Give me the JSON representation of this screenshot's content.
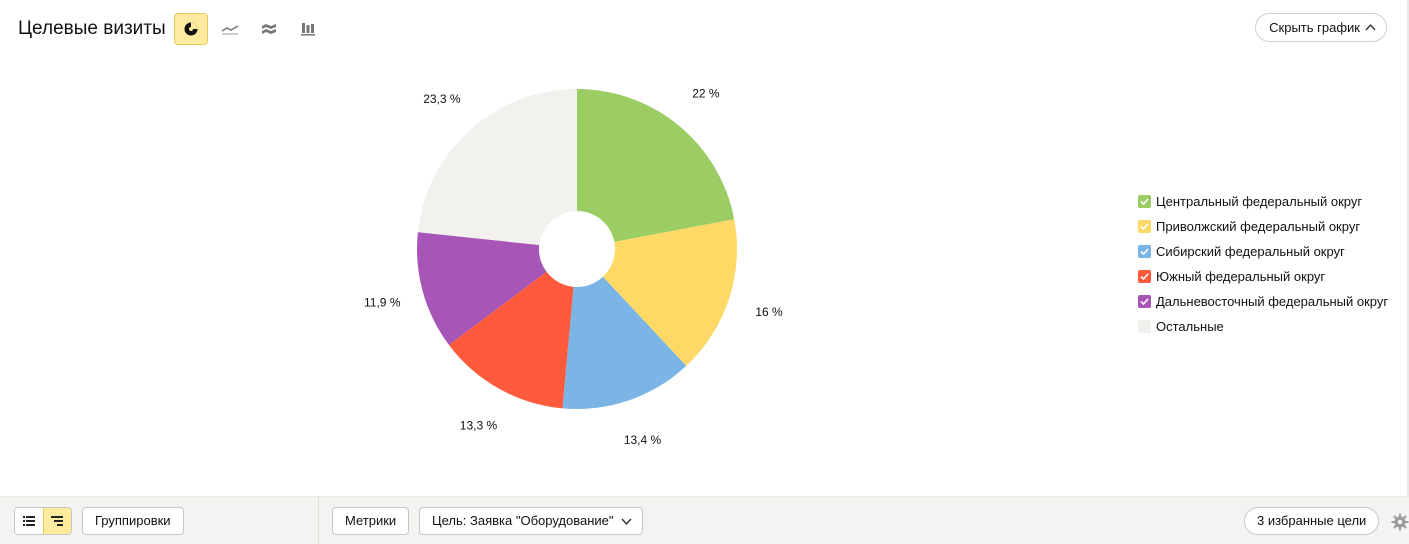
{
  "header": {
    "title": "Целевые визиты",
    "hide_chart_label": "Скрыть график"
  },
  "chart_types": [
    "pie",
    "line",
    "area",
    "bar"
  ],
  "chart_types_active": "pie",
  "chart_data": {
    "type": "pie",
    "title": "",
    "slices": [
      {
        "label": "Центральный федеральный округ",
        "value": 22,
        "value_label": "22 %",
        "color": "#9bcd64"
      },
      {
        "label": "Приволжский федеральный округ",
        "value": 16,
        "value_label": "16 %",
        "color": "#ffd966"
      },
      {
        "label": "Сибирский федеральный округ",
        "value": 13.4,
        "value_label": "13,4 %",
        "color": "#7bb5e6"
      },
      {
        "label": "Южный федеральный округ",
        "value": 13.3,
        "value_label": "13,3 %",
        "color": "#ff5a3c"
      },
      {
        "label": "Дальневосточный федеральный округ",
        "value": 11.9,
        "value_label": "11,9 %",
        "color": "#a855b8"
      },
      {
        "label": "Остальные",
        "value": 23.3,
        "value_label": "23,3 %",
        "color": "#f2f1ee"
      }
    ],
    "legend_placement": "right"
  },
  "footer": {
    "groupings_label": "Группировки",
    "metrics_label": "Метрики",
    "goal_select_value": "Цель: Заявка \"Оборудование\"",
    "favorites_label": "3 избранные цели"
  }
}
